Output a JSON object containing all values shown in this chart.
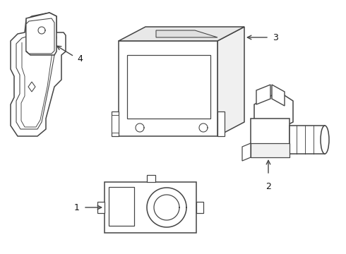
{
  "background_color": "#ffffff",
  "line_color": "#444444",
  "line_width": 1.1,
  "label_color": "#111111",
  "label_fontsize": 9,
  "figsize": [
    4.9,
    3.6
  ],
  "dpi": 100,
  "parts": [
    "1",
    "2",
    "3",
    "4"
  ]
}
